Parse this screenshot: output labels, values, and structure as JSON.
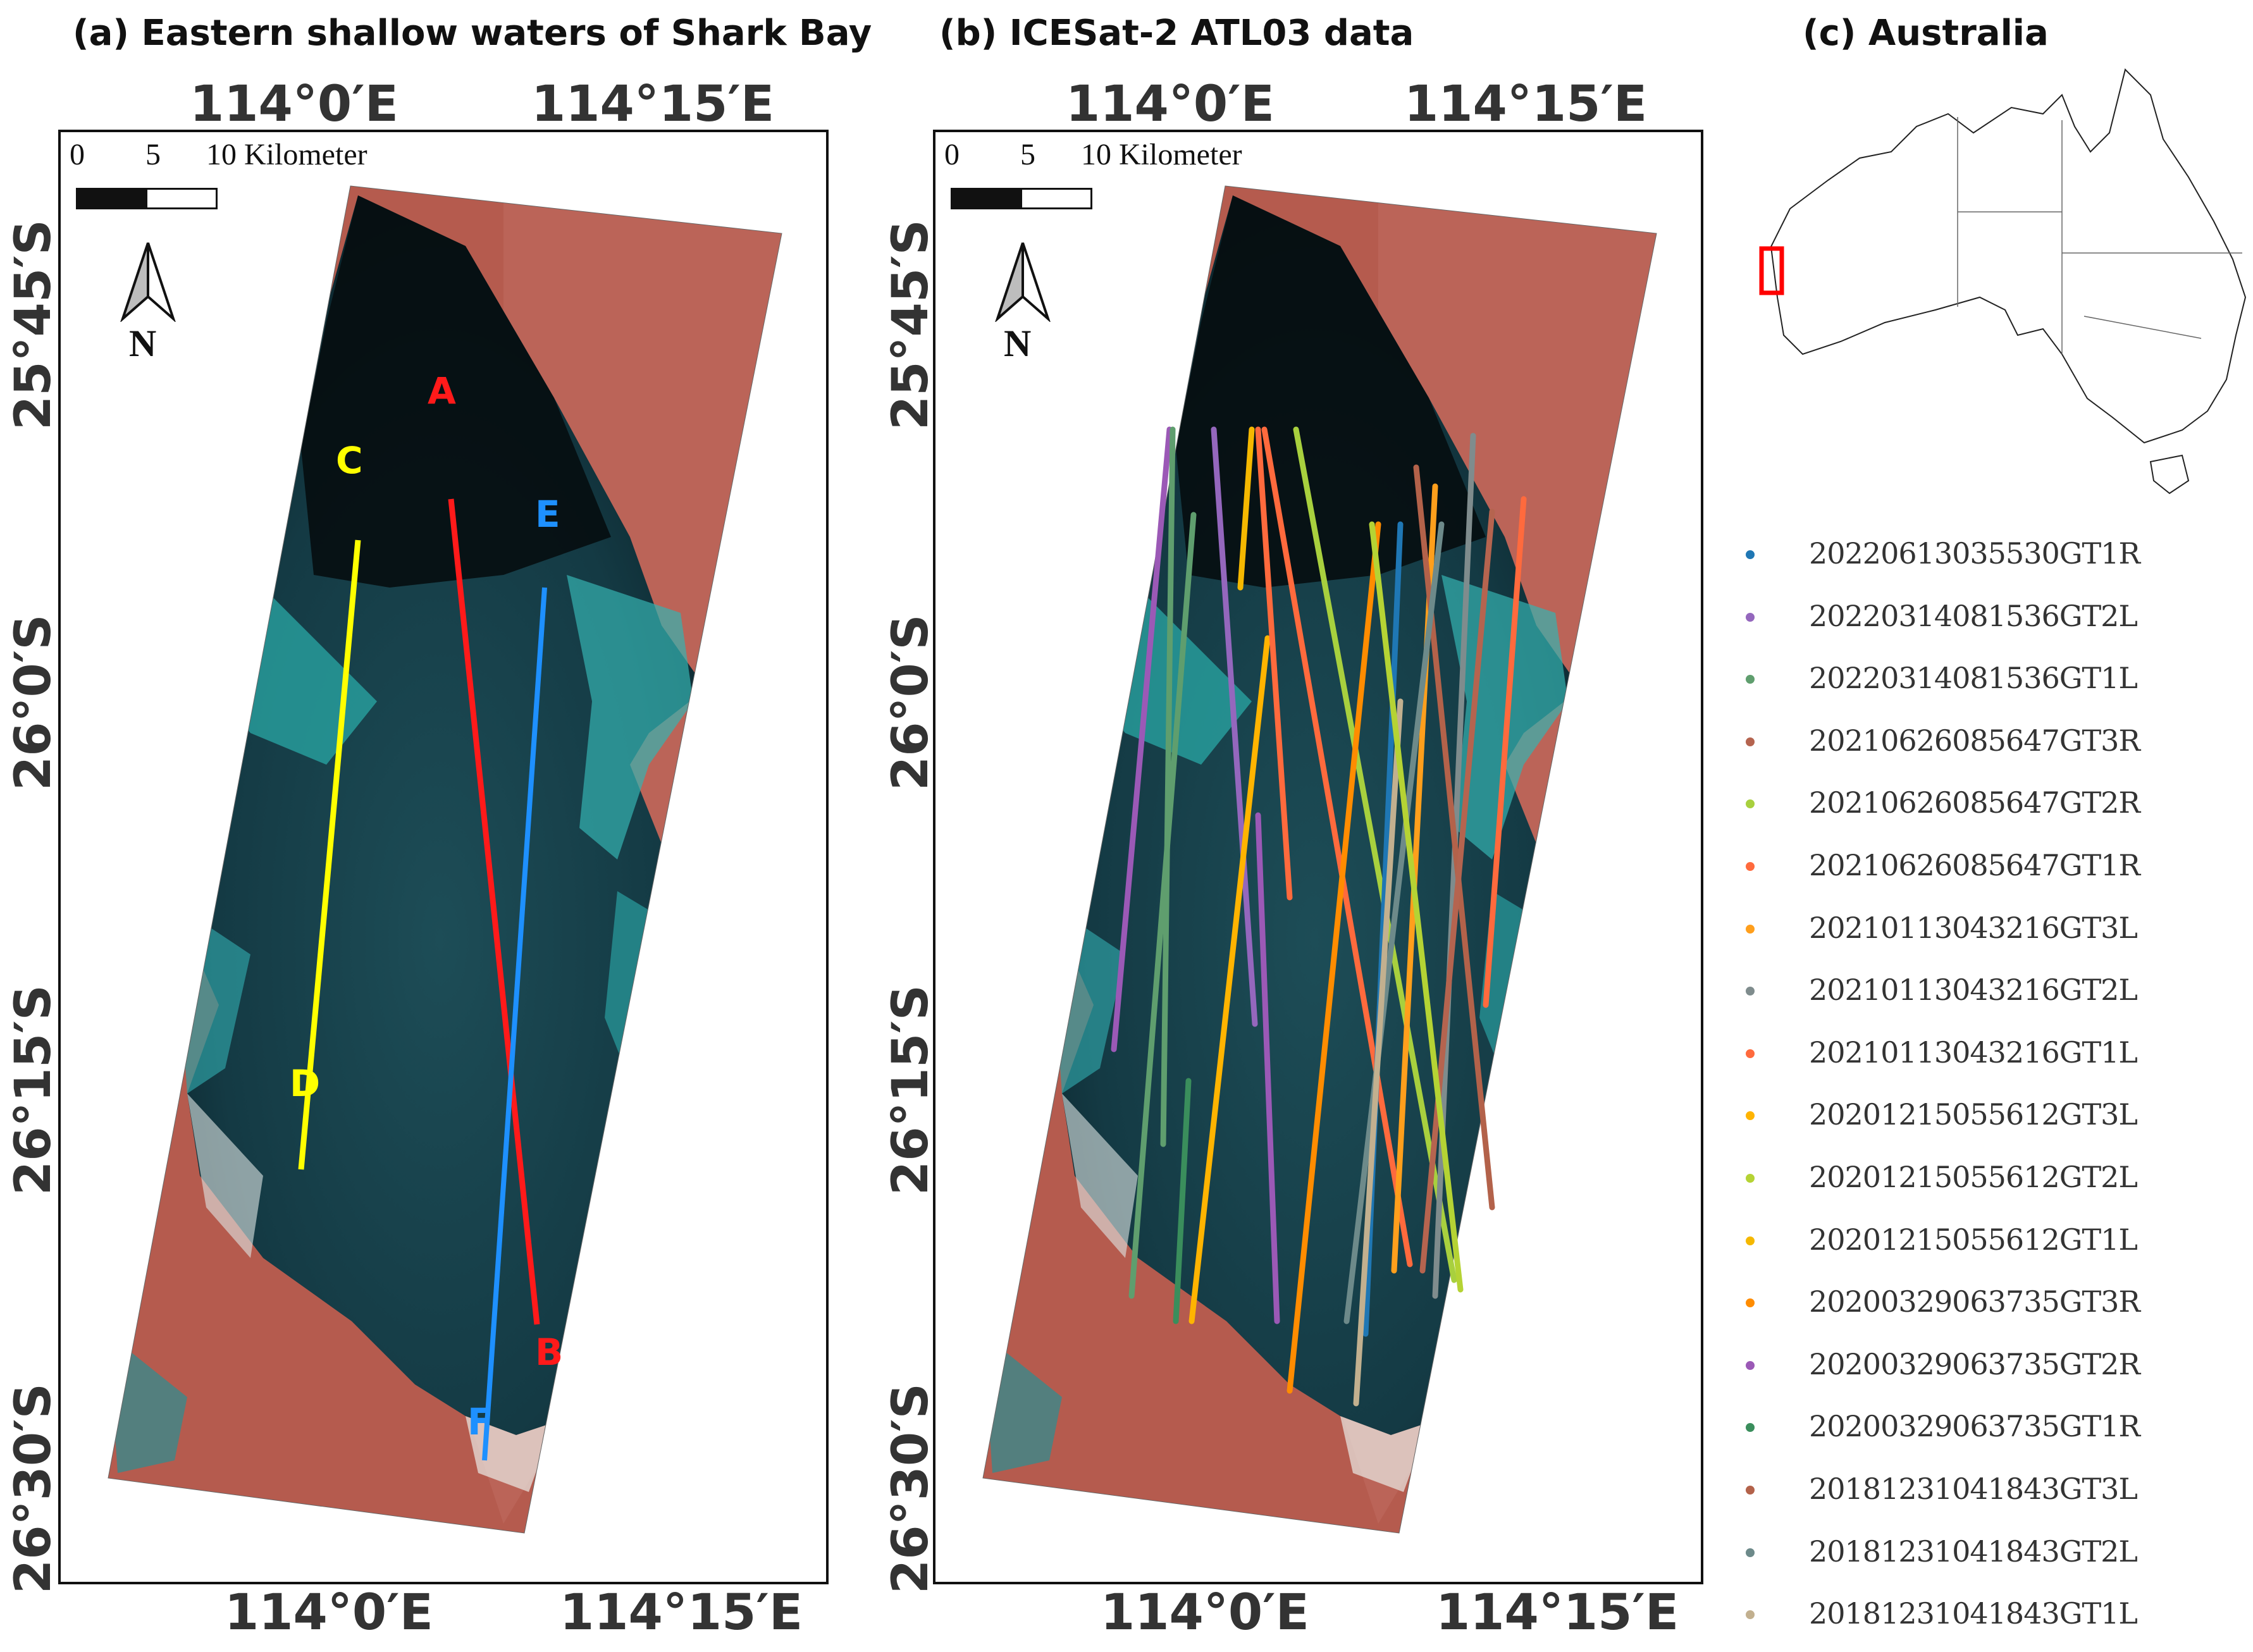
{
  "panels": {
    "a": {
      "title": "(a) Eastern shallow waters of Shark Bay"
    },
    "b": {
      "title": "(b) ICESat-2 ATL03 data"
    },
    "c": {
      "title": "(c) Australia"
    }
  },
  "axes": {
    "lon_left": "114°0′E",
    "lon_right": "114°15′E",
    "lat_labels": [
      "25°45′S",
      "26°0′S",
      "26°15′S",
      "26°30′S"
    ]
  },
  "scale_bar": {
    "ticks": [
      "0",
      "5",
      "10 Kilometer"
    ]
  },
  "north_label": "N",
  "profile_points": {
    "A": {
      "label": "A",
      "color": "#ff1a1a"
    },
    "B": {
      "label": "B",
      "color": "#ff1a1a"
    },
    "C": {
      "label": "C",
      "color": "#ffff00"
    },
    "D": {
      "label": "D",
      "color": "#ffff00"
    },
    "E": {
      "label": "E",
      "color": "#1e90ff"
    },
    "F": {
      "label": "F",
      "color": "#1e90ff"
    }
  },
  "colors": {
    "land": "#b85a4c",
    "water_deep": "#0f2c35",
    "water_shallow": "#2fa3a0",
    "inset_box": "#ff0000"
  },
  "legend": [
    {
      "label": "20220613035530GT1R",
      "color": "#1f77b4"
    },
    {
      "label": "20220314081536GT2L",
      "color": "#9467bd"
    },
    {
      "label": "20220314081536GT1L",
      "color": "#5f9e6e"
    },
    {
      "label": "20210626085647GT3R",
      "color": "#b5644f"
    },
    {
      "label": "20210626085647GT2R",
      "color": "#a8d03e"
    },
    {
      "label": "20210626085647GT1R",
      "color": "#ff6a3d"
    },
    {
      "label": "20210113043216GT3L",
      "color": "#ff9f1c"
    },
    {
      "label": "20210113043216GT2L",
      "color": "#7f8c8d"
    },
    {
      "label": "20210113043216GT1L",
      "color": "#ff6a3d"
    },
    {
      "label": "20201215055612GT3L",
      "color": "#ffb400"
    },
    {
      "label": "20201215055612GT2L",
      "color": "#b5d334"
    },
    {
      "label": "20201215055612GT1L",
      "color": "#f5b800"
    },
    {
      "label": "20200329063735GT3R",
      "color": "#ff8c00"
    },
    {
      "label": "20200329063735GT2R",
      "color": "#9b59b6"
    },
    {
      "label": "20200329063735GT1R",
      "color": "#3a8e5c"
    },
    {
      "label": "20181231041843GT3L",
      "color": "#b3624a"
    },
    {
      "label": "20181231041843GT2L",
      "color": "#6d8a8a"
    },
    {
      "label": "20181231041843GT1L",
      "color": "#c2b08f"
    }
  ]
}
